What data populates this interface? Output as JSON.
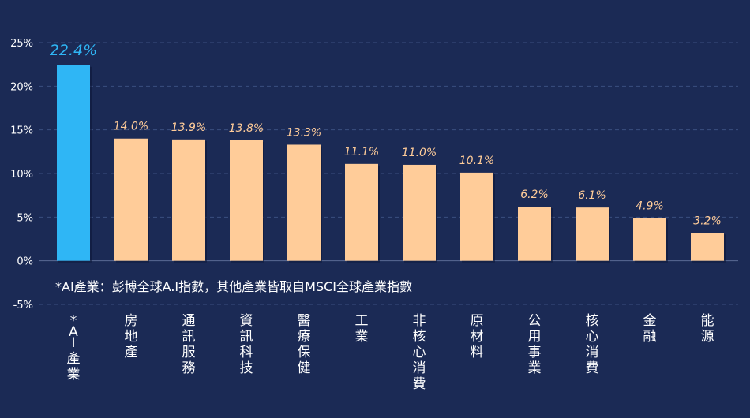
{
  "chart_data": {
    "type": "bar",
    "title": "",
    "xlabel": "",
    "ylabel": "",
    "categories": [
      "*AI產業",
      "房地產",
      "通訊服務",
      "資訊科技",
      "醫療保健",
      "工業",
      "非核心消費",
      "原材料",
      "公用事業",
      "核心消費",
      "金融",
      "能源"
    ],
    "values": [
      22.4,
      14.0,
      13.9,
      13.8,
      13.3,
      11.1,
      11.0,
      10.1,
      6.2,
      6.1,
      4.9,
      3.2
    ],
    "value_labels": [
      "22.4%",
      "14.0%",
      "13.9%",
      "13.8%",
      "13.3%",
      "11.1%",
      "11.0%",
      "10.1%",
      "6.2%",
      "6.1%",
      "4.9%",
      "3.2%"
    ],
    "ylim": [
      -5,
      25
    ],
    "yticks": [
      25,
      20,
      15,
      10,
      5,
      0,
      -5
    ],
    "ytick_labels": [
      "25%",
      "20%",
      "15%",
      "10%",
      "5%",
      "0%",
      "-5%"
    ],
    "grid": true,
    "highlight_index": 0,
    "colors": {
      "background": "#1b2a55",
      "bar": "#ffcc99",
      "highlight_bar": "#2fb6f5",
      "label": "#ffcc99",
      "highlight_label": "#2fb6f5",
      "grid": "#3b4f80",
      "text": "#ffffff"
    },
    "footnote": "*AI產業：彭博全球A.I指數，其他產業皆取自MSCI全球產業指數"
  }
}
